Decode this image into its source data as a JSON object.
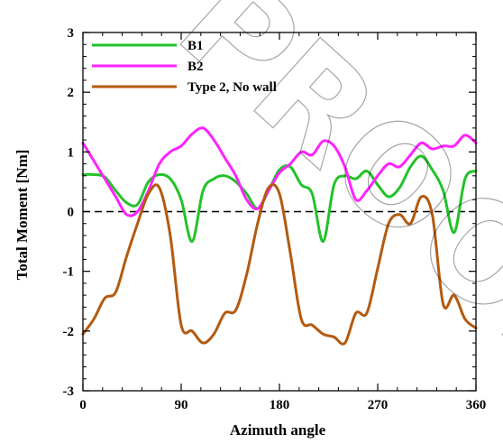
{
  "watermark": "PROOF",
  "colors": {
    "B1": "#22c22a",
    "B2": "#ff22ff",
    "Type 2, No wall": "#b35a10",
    "axis": "#000000",
    "zero_line": "#000000"
  },
  "chart_data": {
    "type": "line",
    "title": "",
    "xlabel": "Azimuth angle",
    "ylabel": "Total Moment [Nm]",
    "xlim": [
      0,
      360
    ],
    "ylim": [
      -3,
      3
    ],
    "xticks": [
      0,
      90,
      180,
      270,
      360
    ],
    "yticks": [
      -3,
      -2,
      -1,
      0,
      1,
      2,
      3
    ],
    "grid": false,
    "legend_position": "top-left",
    "reference_line": {
      "y": 0,
      "style": "dashed"
    },
    "series": [
      {
        "name": "B1",
        "color": "#22c22a",
        "x": [
          0,
          10,
          20,
          30,
          40,
          50,
          60,
          70,
          80,
          90,
          100,
          110,
          120,
          130,
          140,
          150,
          160,
          170,
          180,
          190,
          200,
          210,
          220,
          230,
          240,
          250,
          260,
          270,
          280,
          290,
          300,
          310,
          320,
          330,
          340,
          350,
          360
        ],
        "y": [
          0.62,
          0.62,
          0.58,
          0.35,
          0.15,
          0.12,
          0.5,
          0.62,
          0.55,
          0.2,
          -0.5,
          0.35,
          0.55,
          0.6,
          0.5,
          0.3,
          0.05,
          0.35,
          0.7,
          0.75,
          0.45,
          0.3,
          -0.5,
          0.45,
          0.6,
          0.55,
          0.68,
          0.45,
          0.25,
          0.4,
          0.75,
          0.93,
          0.7,
          0.35,
          -0.35,
          0.55,
          0.68
        ]
      },
      {
        "name": "B2",
        "color": "#ff22ff",
        "x": [
          0,
          10,
          20,
          30,
          40,
          50,
          60,
          70,
          80,
          90,
          100,
          110,
          120,
          130,
          140,
          150,
          160,
          170,
          180,
          190,
          200,
          210,
          220,
          230,
          240,
          250,
          260,
          270,
          280,
          290,
          300,
          310,
          320,
          330,
          340,
          350,
          360
        ],
        "y": [
          1.15,
          0.85,
          0.55,
          0.25,
          -0.05,
          0.0,
          0.35,
          0.8,
          1.0,
          1.1,
          1.3,
          1.4,
          1.2,
          0.9,
          0.6,
          0.2,
          0.05,
          0.35,
          0.65,
          0.8,
          1.0,
          0.95,
          1.18,
          1.1,
          0.75,
          0.2,
          0.35,
          0.6,
          0.8,
          0.75,
          0.95,
          1.15,
          1.05,
          1.1,
          1.1,
          1.28,
          1.15
        ]
      },
      {
        "name": "Type 2, No wall",
        "color": "#b35a10",
        "x": [
          0,
          10,
          20,
          30,
          40,
          50,
          60,
          70,
          80,
          90,
          100,
          110,
          120,
          130,
          140,
          150,
          160,
          170,
          180,
          190,
          200,
          210,
          220,
          230,
          240,
          250,
          260,
          270,
          280,
          290,
          300,
          310,
          320,
          330,
          340,
          350,
          360
        ],
        "y": [
          -2.05,
          -1.8,
          -1.45,
          -1.35,
          -0.75,
          -0.2,
          0.3,
          0.4,
          -0.4,
          -1.9,
          -2.0,
          -2.2,
          -2.05,
          -1.7,
          -1.65,
          -1.05,
          -0.2,
          0.4,
          0.3,
          -0.7,
          -1.8,
          -1.9,
          -2.05,
          -2.1,
          -2.2,
          -1.7,
          -1.7,
          -0.95,
          -0.2,
          -0.05,
          -0.2,
          0.25,
          -0.05,
          -1.55,
          -1.4,
          -1.8,
          -1.95
        ]
      }
    ]
  }
}
